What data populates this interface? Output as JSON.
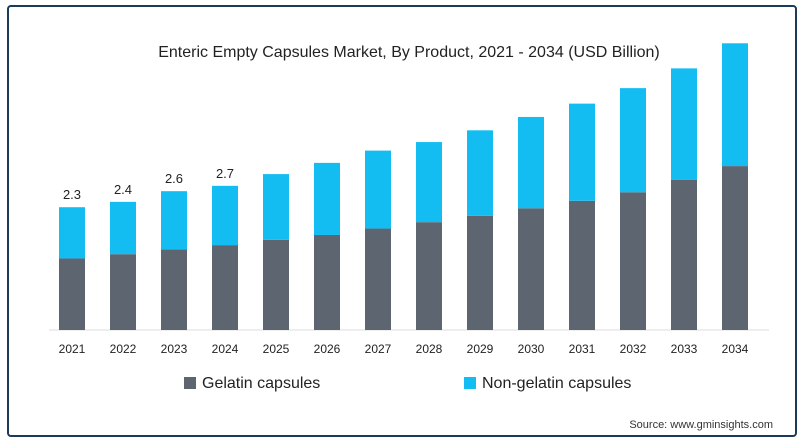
{
  "chart_data": {
    "type": "bar",
    "stacked": true,
    "title": "Enteric Empty Capsules Market, By Product, 2021 - 2034 (USD Billion)",
    "categories": [
      "2021",
      "2022",
      "2023",
      "2024",
      "2025",
      "2026",
      "2027",
      "2028",
      "2029",
      "2030",
      "2031",
      "2032",
      "2033",
      "2034"
    ],
    "series": [
      {
        "name": "Gelatin capsules",
        "color": "#5d6571",
        "values": [
          1.34,
          1.42,
          1.51,
          1.59,
          1.69,
          1.78,
          1.9,
          2.02,
          2.14,
          2.28,
          2.42,
          2.58,
          2.81,
          3.07
        ]
      },
      {
        "name": "Non-gelatin capsules",
        "color": "#13bdf2",
        "values": [
          0.96,
          0.98,
          1.09,
          1.11,
          1.23,
          1.35,
          1.46,
          1.5,
          1.6,
          1.71,
          1.82,
          1.95,
          2.09,
          2.3
        ]
      }
    ],
    "data_labels": [
      {
        "category": "2021",
        "text": "2.3"
      },
      {
        "category": "2022",
        "text": "2.4"
      },
      {
        "category": "2023",
        "text": "2.6"
      },
      {
        "category": "2024",
        "text": "2.7"
      }
    ],
    "ylim": [
      0,
      5.6
    ],
    "grid": false,
    "legend": "bottom"
  },
  "source": "Source: www.gminsights.com"
}
